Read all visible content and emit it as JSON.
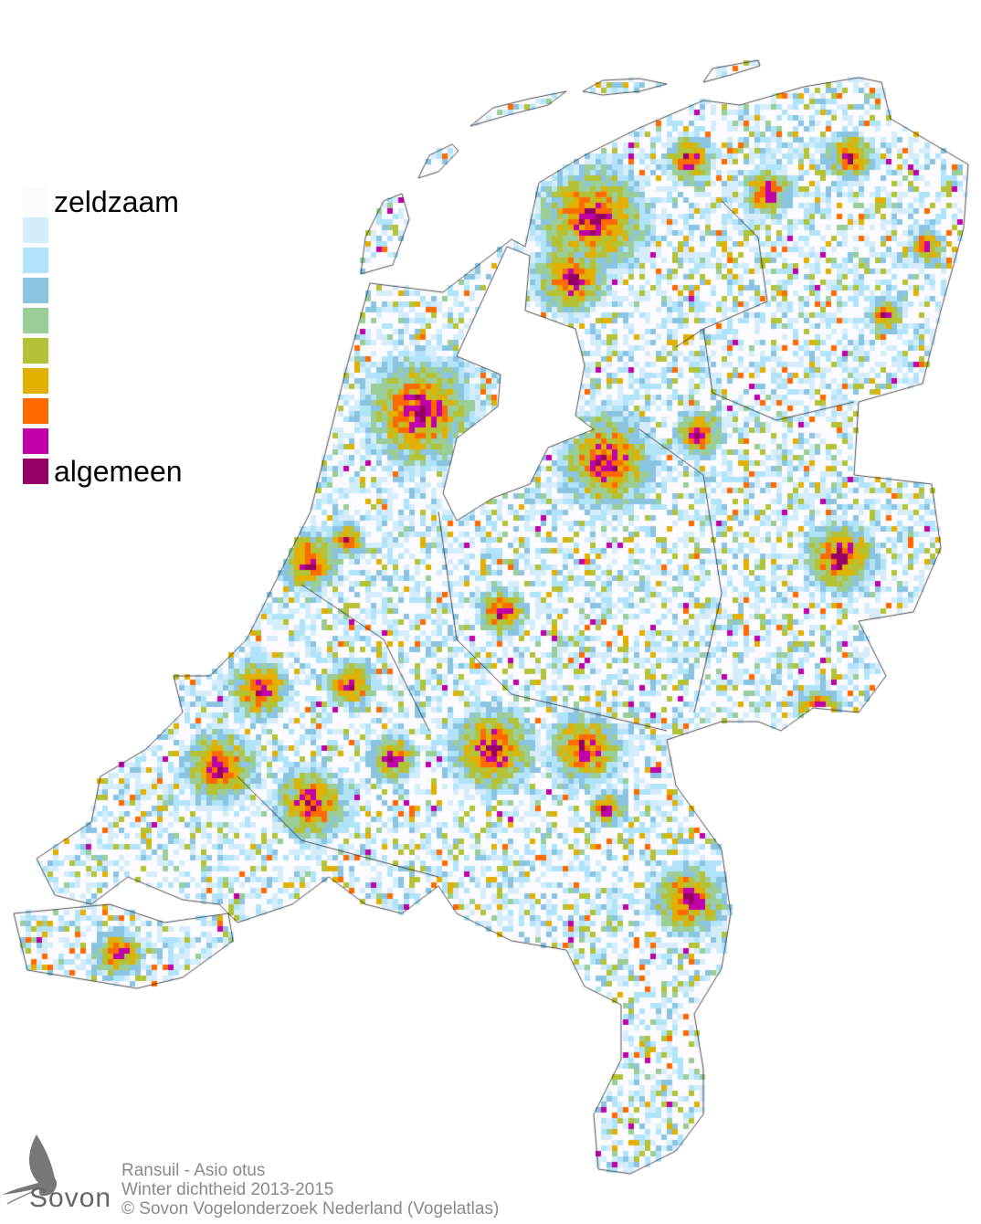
{
  "legend": {
    "top_label": "zeldzaam",
    "bottom_label": "algemeen",
    "colors": [
      "#fbfbff",
      "#d5ecfb",
      "#b1e4fa",
      "#8bc4e0",
      "#9bcd98",
      "#b3c236",
      "#e1b000",
      "#ff6a00",
      "#c000a8",
      "#960064"
    ]
  },
  "footer": {
    "species": "Ransuil - Asio otus",
    "subtitle": "Winter dichtheid 2013-2015",
    "copyright": "© Sovon Vogelonderzoek Nederland (Vogelatlas)"
  },
  "logo": {
    "text": "Sovon"
  }
}
